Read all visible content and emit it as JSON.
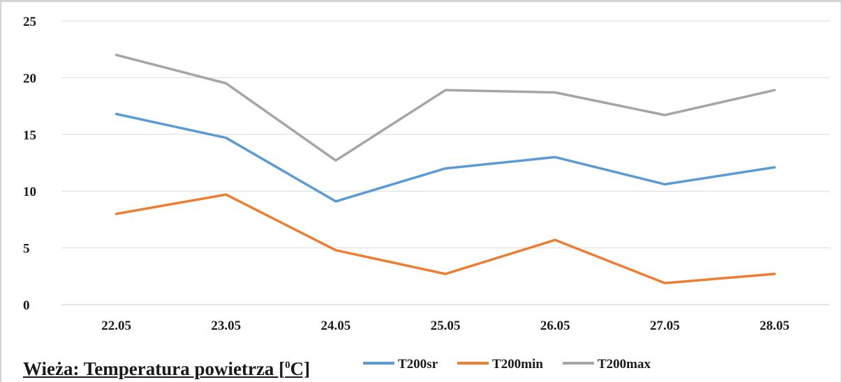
{
  "chart_data": {
    "type": "line",
    "title_prefix": "Wieża: Temperatura powietrza [",
    "title_superscript": "0",
    "title_suffix": "C]",
    "xlabel": "",
    "ylabel": "",
    "categories": [
      "22.05",
      "23.05",
      "24.05",
      "25.05",
      "26.05",
      "27.05",
      "28.05"
    ],
    "ylim": [
      0,
      25
    ],
    "yticks": [
      0,
      5,
      10,
      15,
      20,
      25
    ],
    "grid": true,
    "legend_position": "bottom",
    "series": [
      {
        "name": "T200sr",
        "color": "#5b9bd5",
        "values": [
          16.8,
          14.7,
          9.1,
          12.0,
          13.0,
          10.6,
          12.1
        ]
      },
      {
        "name": "T200min",
        "color": "#ed7d31",
        "values": [
          8.0,
          9.7,
          4.8,
          2.7,
          5.7,
          1.9,
          2.7
        ]
      },
      {
        "name": "T200max",
        "color": "#a5a5a5",
        "values": [
          22.0,
          19.5,
          12.7,
          18.9,
          18.7,
          16.7,
          18.9
        ]
      }
    ]
  }
}
